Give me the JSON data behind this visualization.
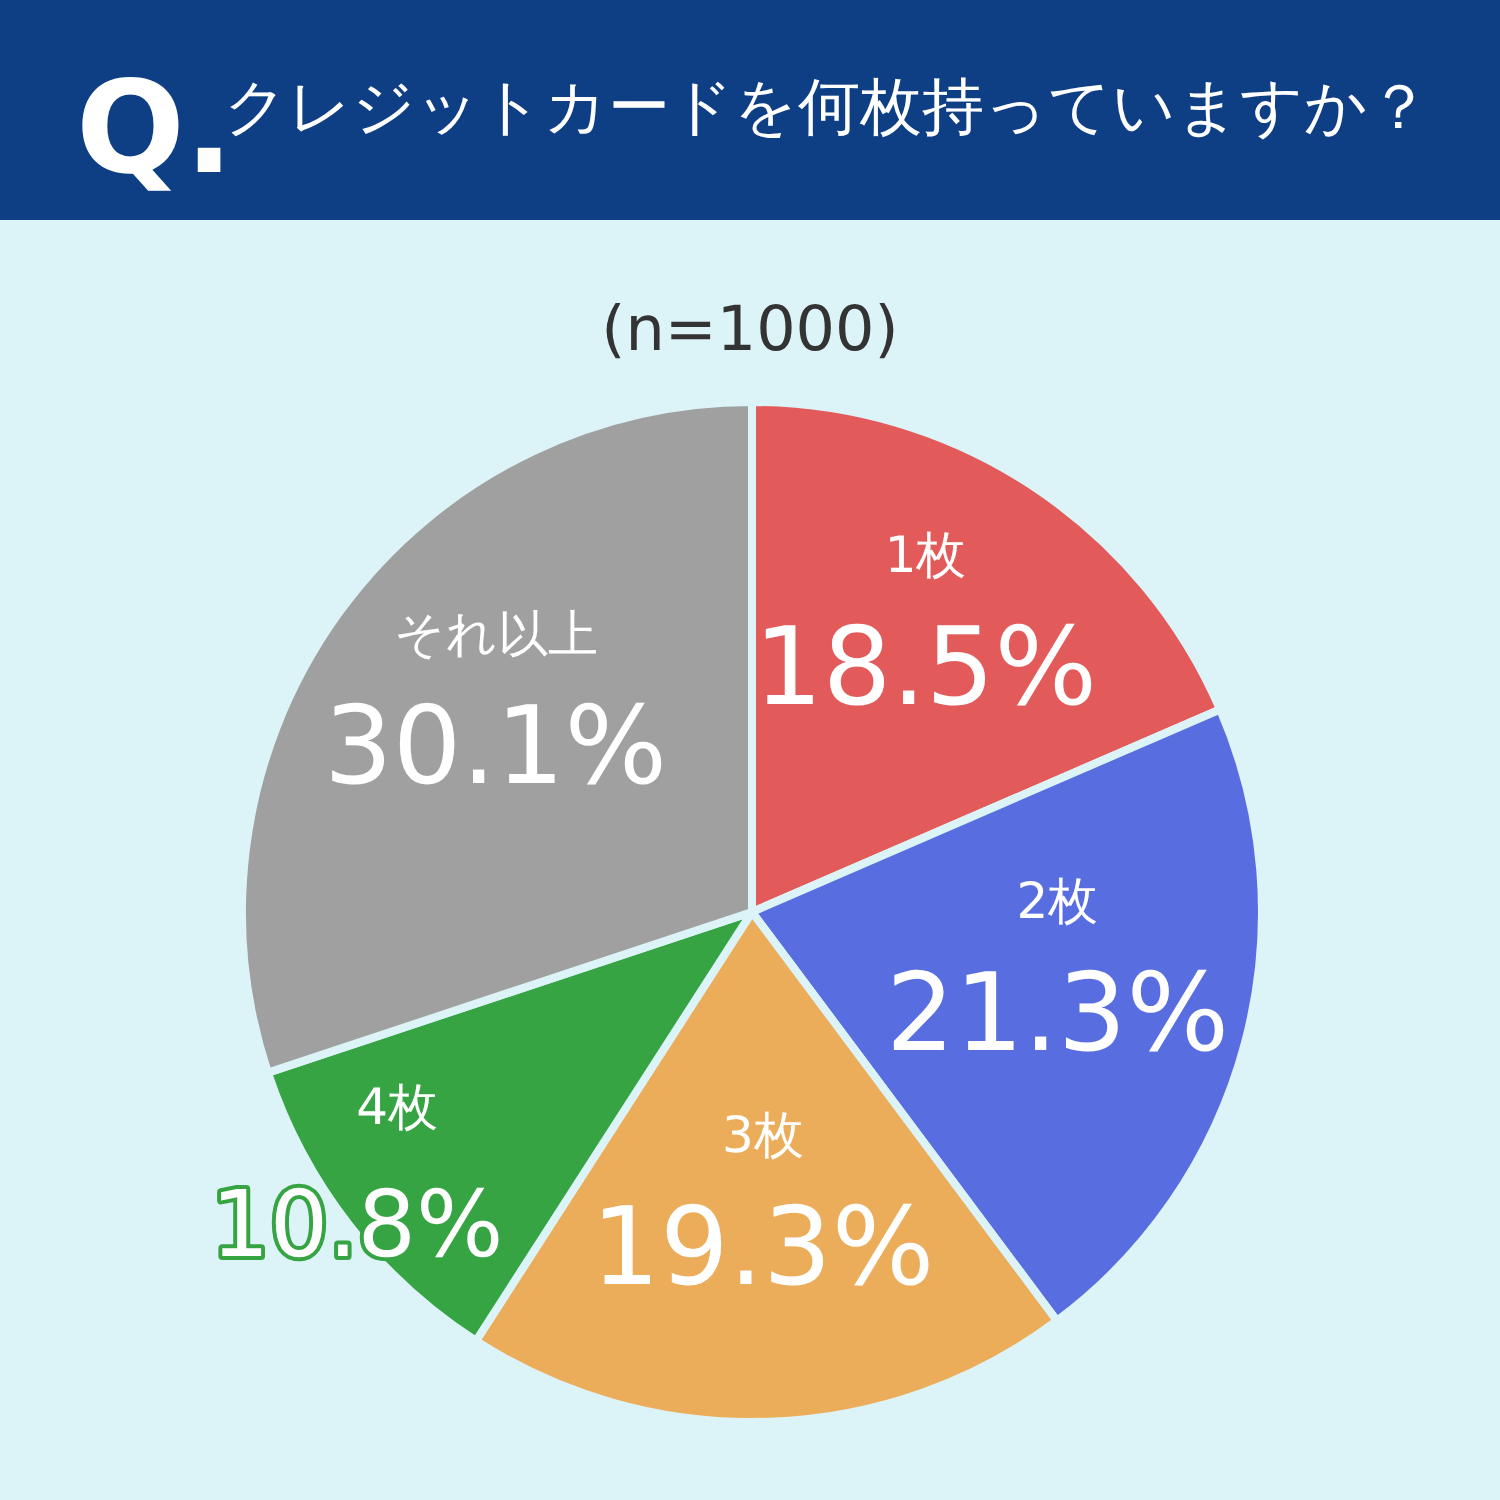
{
  "chart_data": {
    "type": "pie",
    "title": "クレジットカードを何枚持っていますか？",
    "subtitle": "(n=1000)",
    "annotations": [
      "Q."
    ],
    "categories": [
      "1枚",
      "2枚",
      "3枚",
      "4枚",
      "それ以上"
    ],
    "values": [
      18.5,
      21.3,
      19.3,
      10.8,
      30.1
    ],
    "colors": [
      "#e35a5a",
      "#586ee0",
      "#ecad5a",
      "#36a443",
      "#a0a0a0"
    ],
    "value_labels": [
      "18.5%",
      "21.3%",
      "19.3%",
      "10.8%",
      "30.1%"
    ]
  }
}
